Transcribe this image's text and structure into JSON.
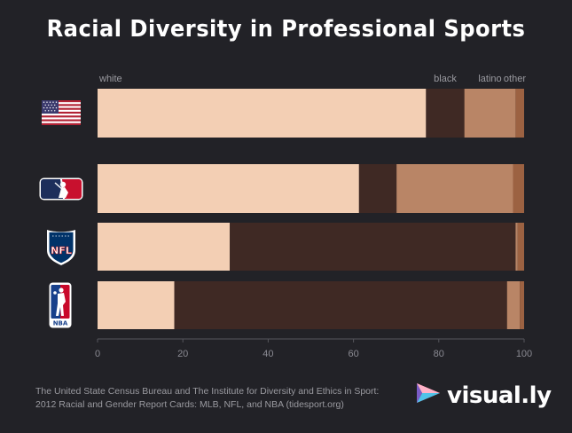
{
  "title": "Racial Diversity in Professional Sports",
  "source": {
    "line1": "The United State Census Bureau and The Institute for Diversity and Ethics in Sport:",
    "line2": "2012 Racial and Gender Report Cards: MLB, NFL, and NBA (tidesport.org)"
  },
  "brand": {
    "name": "visual.ly",
    "icon": "visually-logo-icon"
  },
  "logos": [
    {
      "icon": "us-flag-icon"
    },
    {
      "icon": "mlb-logo-icon"
    },
    {
      "icon": "nfl-logo-icon",
      "text": "NFL"
    },
    {
      "icon": "nba-logo-icon",
      "text": "NBA"
    }
  ],
  "chart_data": {
    "type": "bar",
    "orientation": "horizontal",
    "stacked": true,
    "title": "Racial Diversity in Professional Sports",
    "xlim": [
      0,
      100
    ],
    "xticks": [
      0,
      20,
      40,
      60,
      80,
      100
    ],
    "grid": false,
    "legend": "top, inline labels above first bar",
    "categories": [
      "United States",
      "MLB",
      "NFL",
      "NBA"
    ],
    "series": [
      {
        "name": "white",
        "color": "#f3cfb4",
        "values": [
          77,
          61.3,
          31,
          18
        ]
      },
      {
        "name": "black",
        "color": "#3f2924",
        "values": [
          9,
          8.8,
          67,
          78
        ]
      },
      {
        "name": "latino",
        "color": "#b98566",
        "values": [
          12,
          27.3,
          0.5,
          3
        ]
      },
      {
        "name": "other",
        "color": "#9c6242",
        "values": [
          2,
          2.6,
          1.5,
          1
        ]
      }
    ]
  }
}
